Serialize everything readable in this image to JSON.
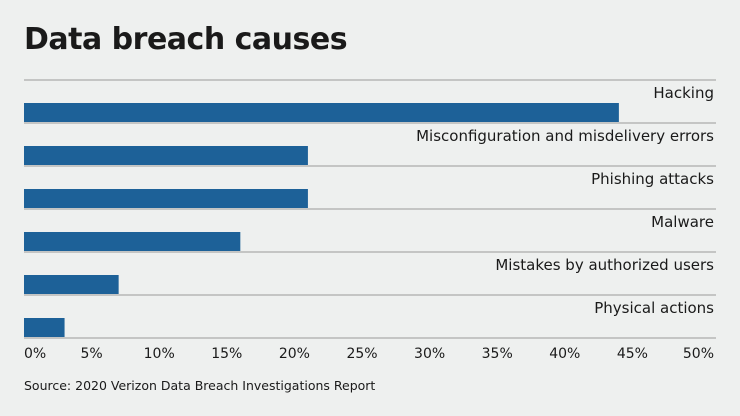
{
  "title": "Data breach causes",
  "source": "Source: 2020 Verizon Data Breach Investigations Report",
  "colors": {
    "bar": "#1d6198",
    "background": "#eef0ef",
    "separator": "#9a9a9a",
    "text": "#1a1a1a"
  },
  "chart_data": {
    "type": "bar",
    "orientation": "horizontal",
    "categories": [
      "Hacking",
      "Misconfiguration and misdelivery errors",
      "Phishing attacks",
      "Malware",
      "Mistakes by authorized users",
      "Physical actions"
    ],
    "values": [
      44,
      21,
      21,
      16,
      7,
      3
    ],
    "unit": "%",
    "xlim": [
      0,
      50
    ],
    "xticks": [
      0,
      5,
      10,
      15,
      20,
      25,
      30,
      35,
      40,
      45,
      50
    ],
    "xtick_labels": [
      "0%",
      "5%",
      "10%",
      "15%",
      "20%",
      "25%",
      "30%",
      "35%",
      "40%",
      "45%",
      "50%"
    ],
    "grid": false,
    "legend": "none"
  }
}
